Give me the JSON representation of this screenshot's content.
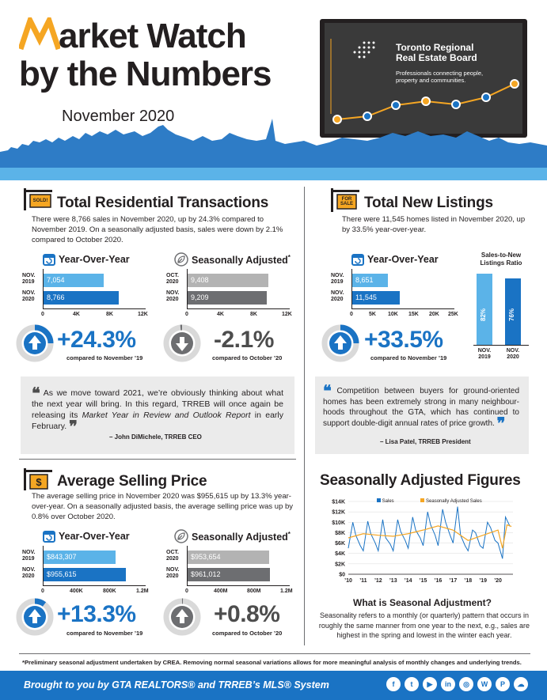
{
  "header": {
    "title_line1_rest": "arket Watch",
    "title_line2": "by the Numbers",
    "date": "November 2020",
    "board_name_line1": "Toronto Regional",
    "board_name_line2": "Real Estate Board",
    "board_tag_line1": "Professionals connecting people,",
    "board_tag_line2": "property and communities."
  },
  "transactions": {
    "sign": "SOLD!",
    "title": "Total Residential Transactions",
    "desc": "There were 8,766 sales in November 2020, up by 24.3% compared to November 2019. On a seasonally adjusted basis, sales were down by 2.1% compared to October 2020.",
    "yoy": {
      "title": "Year-Over-Year",
      "row1_label": "NOV. 2019",
      "row1_value": "7,054",
      "row2_label": "NOV. 2020",
      "row2_value": "8,766",
      "axis": [
        "0",
        "4K",
        "8K",
        "12K"
      ],
      "change": "+24.3%",
      "caption": "compared to November ’19",
      "values": [
        7054,
        8766
      ],
      "max": 12000
    },
    "sa": {
      "title": "Seasonally Adjusted",
      "row1_label": "OCT. 2020",
      "row1_value": "9,408",
      "row2_label": "NOV. 2020",
      "row2_value": "9,209",
      "axis": [
        "0",
        "4K",
        "8K",
        "12K"
      ],
      "change": "-2.1%",
      "caption": "compared to October ’20",
      "values": [
        9408,
        9209
      ],
      "max": 12000
    }
  },
  "quote1": {
    "text_a": "As we move toward 2021, we’re obviously thinking about what the next year will bring. In this regard, TRREB will once again be releasing its ",
    "text_italic": "Market Year in Review and Outlook Report",
    "text_b": " in early February.",
    "author": "– John DiMichele, TRREB CEO"
  },
  "listings": {
    "sign": "FOR SALE",
    "title": "Total New Listings",
    "desc": "There were 11,545 homes listed in November 2020, up by 33.5% year-over-year.",
    "yoy": {
      "title": "Year-Over-Year",
      "row1_label": "NOV. 2019",
      "row1_value": "8,651",
      "row2_label": "NOV. 2020",
      "row2_value": "11,545",
      "axis": [
        "0",
        "5K",
        "10K",
        "15K",
        "20K",
        "25K"
      ],
      "change": "+33.5%",
      "caption": "compared to November ’19",
      "values": [
        8651,
        11545
      ],
      "max": 25000
    },
    "ratio": {
      "title_line1": "Sales-to-New",
      "title_line2": "Listings Ratio",
      "bar1_value": "82%",
      "bar2_value": "76%",
      "bar1_label": "NOV. 2019",
      "bar2_label": "NOV. 2020",
      "values": [
        82,
        76
      ]
    }
  },
  "quote2": {
    "text": "Competition between buyers for ground-oriented homes has been extremely strong in many neighbour-hoods throughout the GTA, which has continued to support double-digit annual rates of price growth.",
    "author": "– Lisa Patel, TRREB President"
  },
  "price": {
    "sign": "$",
    "title": "Average Selling Price",
    "desc": "The average selling price in November 2020 was $955,615 up by 13.3% year-over-year. On a seasonally adjusted basis, the average selling price was up by 0.8% over October 2020.",
    "yoy": {
      "title": "Year-Over-Year",
      "row1_label": "NOV. 2019",
      "row1_value": "$843,307",
      "row2_label": "NOV. 2020",
      "row2_value": "$955,615",
      "axis": [
        "0",
        "400K",
        "800K",
        "1.2M"
      ],
      "change": "+13.3%",
      "caption": "compared to November ’19",
      "values": [
        843307,
        955615
      ],
      "max": 1200000
    },
    "sa": {
      "title": "Seasonally Adjusted",
      "row1_label": "OCT. 2020",
      "row1_value": "$953,654",
      "row2_label": "NOV. 2020",
      "row2_value": "$961,012",
      "axis": [
        "0",
        "400M",
        "800M",
        "1.2M"
      ],
      "change": "+0.8%",
      "caption": "compared to October ’20",
      "values": [
        953654,
        961012
      ],
      "max": 1200000
    }
  },
  "sa_figures": {
    "title": "Seasonally Adjusted Figures",
    "legend_sales": "Sales",
    "legend_sa": "Seasonally Adjusted Sales",
    "what_title": "What is Seasonal Adjustment?",
    "what_text": "Seasonality refers to a monthly (or quarterly) pattern that occurs in roughly the same manner from one year to the next, e.g., sales are highest in the spring and lowest in the winter each year."
  },
  "chart_data": {
    "type": "line",
    "title": "",
    "xlabel": "",
    "ylabel": "",
    "y_ticks": [
      "$0",
      "$2K",
      "$4K",
      "$6K",
      "$8K",
      "$10K",
      "$12K",
      "$14K"
    ],
    "x_ticks": [
      "’10",
      "’11",
      "’12",
      "’13",
      "’14",
      "’15",
      "’16",
      "’17",
      "’18",
      "’19",
      "’20"
    ],
    "ylim": [
      0,
      14000
    ],
    "xlim": [
      2010,
      2021
    ],
    "series": [
      {
        "name": "Sales",
        "color": "#1a73c4",
        "x": [
          2010,
          2010.3,
          2010.5,
          2010.8,
          2011,
          2011.3,
          2011.5,
          2011.8,
          2012,
          2012.3,
          2012.5,
          2012.8,
          2013,
          2013.3,
          2013.5,
          2013.8,
          2014,
          2014.3,
          2014.5,
          2014.8,
          2015,
          2015.3,
          2015.5,
          2015.8,
          2016,
          2016.3,
          2016.5,
          2016.8,
          2017,
          2017.3,
          2017.5,
          2017.8,
          2018,
          2018.3,
          2018.5,
          2018.8,
          2019,
          2019.3,
          2019.5,
          2019.8,
          2020,
          2020.3,
          2020.5,
          2020.8
        ],
        "y": [
          5000,
          10000,
          7500,
          5500,
          4500,
          10200,
          7800,
          6000,
          4500,
          10500,
          7000,
          5800,
          4500,
          10500,
          8200,
          6500,
          5000,
          11000,
          8500,
          7000,
          5500,
          12000,
          9500,
          7500,
          5500,
          12500,
          10000,
          7500,
          6000,
          13000,
          7500,
          5500,
          4500,
          8500,
          8000,
          5500,
          5000,
          10000,
          9000,
          6500,
          6000,
          3000,
          11000,
          9200
        ]
      },
      {
        "name": "Seasonally Adjusted Sales",
        "color": "#f5a623",
        "x": [
          2010,
          2011,
          2012,
          2013,
          2014,
          2015,
          2016,
          2017,
          2018,
          2019,
          2020,
          2020.3,
          2020.6,
          2020.9
        ],
        "y": [
          7000,
          7800,
          7500,
          7300,
          7800,
          8500,
          9300,
          8500,
          6500,
          7500,
          8500,
          5000,
          9500,
          9200
        ]
      }
    ]
  },
  "footer": {
    "note": "*Preliminary seasonal adjustment undertaken by CREA. Removing normal seasonal variations allows for more meaningful analysis of monthly changes and underlying trends.",
    "brought": "Brought to you by GTA REALTORS® and TRREB’s MLS® System",
    "social": [
      "f",
      "t",
      "▶",
      "in",
      "◎",
      "W",
      "P",
      "☁"
    ]
  },
  "colors": {
    "blue": "#1a73c4",
    "light_blue": "#5bb3e8",
    "grey": "#6d6e71",
    "light_grey": "#b3b3b3"
  }
}
